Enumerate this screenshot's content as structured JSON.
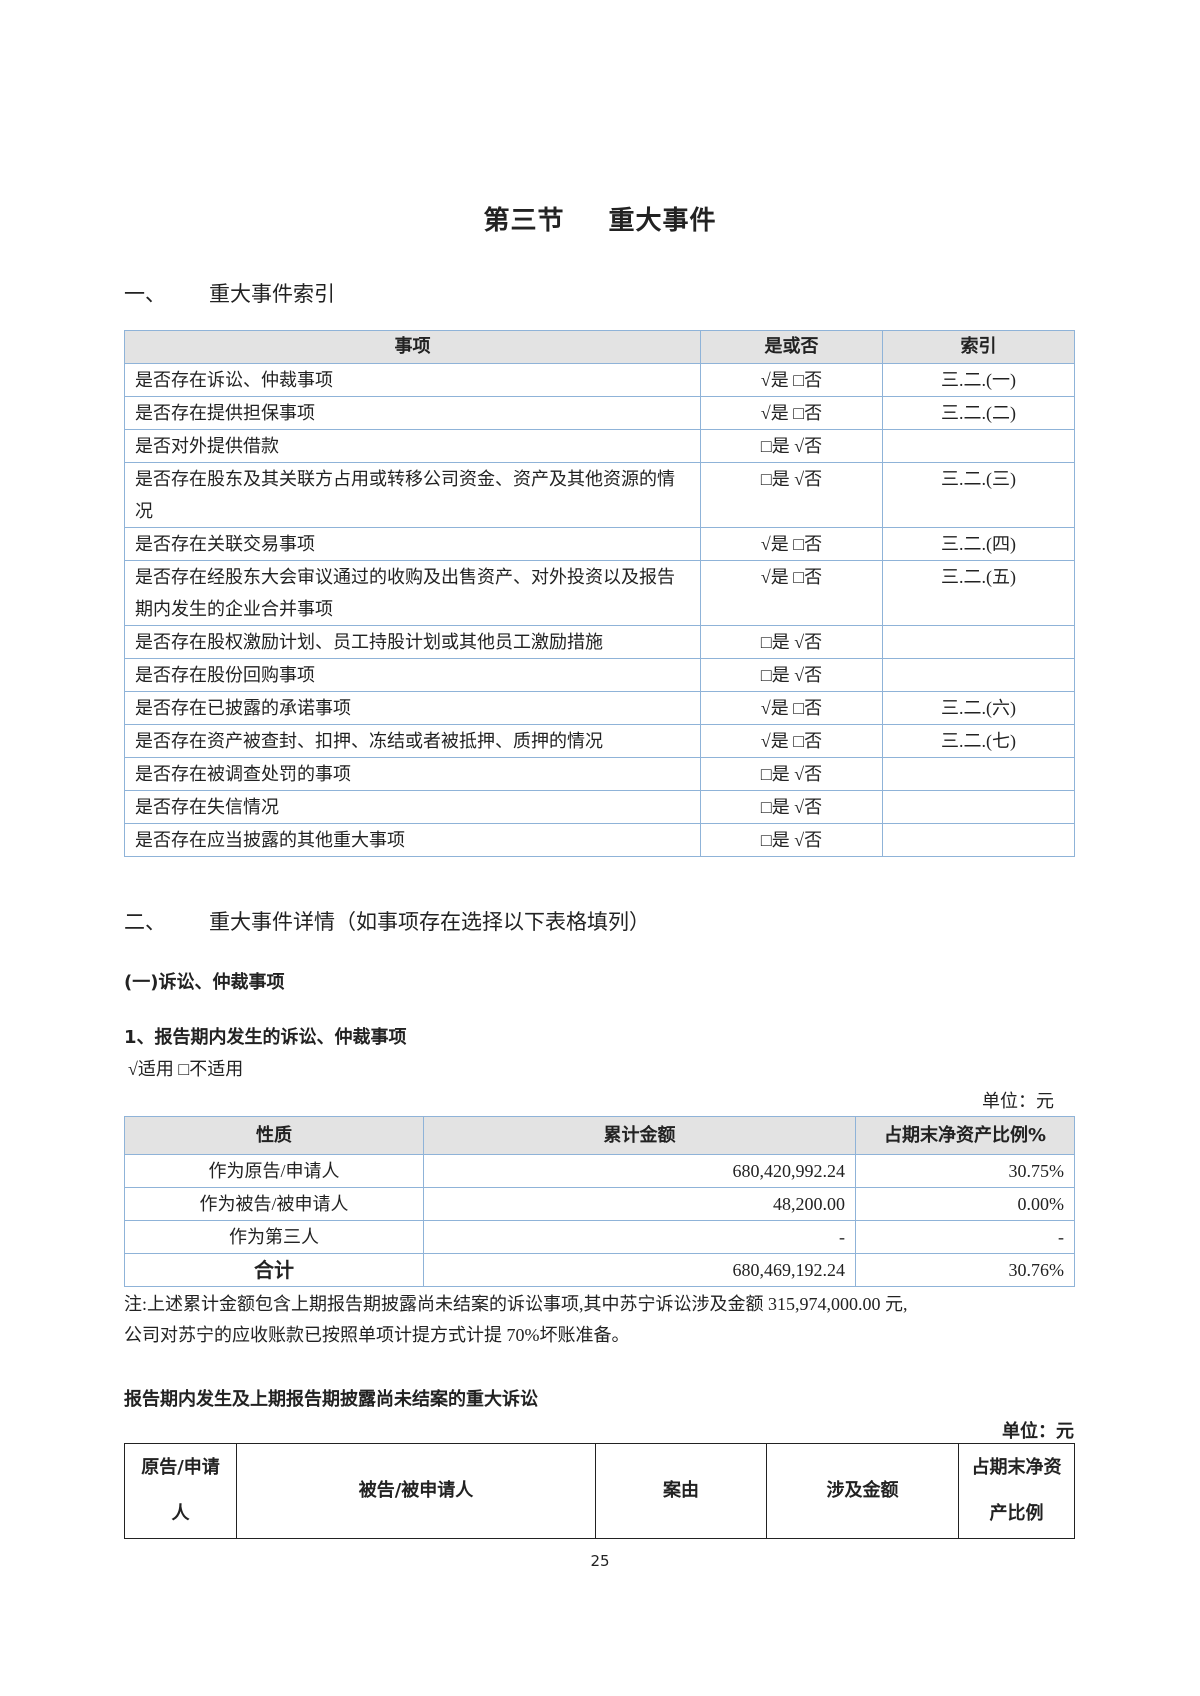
{
  "section_title": {
    "part1": "第三节",
    "part2": "重大事件"
  },
  "heading1": {
    "num": "一、",
    "text": "重大事件索引"
  },
  "index_table": {
    "headers": [
      "事项",
      "是或否",
      "索引"
    ],
    "rows": [
      {
        "item": "是否存在诉讼、仲裁事项",
        "yesno": "√是 □否",
        "index": "三.二.(一)"
      },
      {
        "item": "是否存在提供担保事项",
        "yesno": "√是 □否",
        "index": "三.二.(二)"
      },
      {
        "item": "是否对外提供借款",
        "yesno": "□是 √否",
        "index": ""
      },
      {
        "item": "是否存在股东及其关联方占用或转移公司资金、资产及其他资源的情况",
        "yesno": "□是 √否",
        "index": "三.二.(三)"
      },
      {
        "item": "是否存在关联交易事项",
        "yesno": "√是 □否",
        "index": "三.二.(四)"
      },
      {
        "item": "是否存在经股东大会审议通过的收购及出售资产、对外投资以及报告期内发生的企业合并事项",
        "yesno": "√是 □否",
        "index": "三.二.(五)"
      },
      {
        "item": "是否存在股权激励计划、员工持股计划或其他员工激励措施",
        "yesno": "□是 √否",
        "index": ""
      },
      {
        "item": "是否存在股份回购事项",
        "yesno": "□是 √否",
        "index": ""
      },
      {
        "item": "是否存在已披露的承诺事项",
        "yesno": "√是 □否",
        "index": "三.二.(六)"
      },
      {
        "item": "是否存在资产被查封、扣押、冻结或者被抵押、质押的情况",
        "yesno": "√是 □否",
        "index": "三.二.(七)"
      },
      {
        "item": "是否存在被调查处罚的事项",
        "yesno": "□是 √否",
        "index": ""
      },
      {
        "item": "是否存在失信情况",
        "yesno": "□是 √否",
        "index": ""
      },
      {
        "item": "是否存在应当披露的其他重大事项",
        "yesno": "□是 √否",
        "index": ""
      }
    ]
  },
  "heading2": {
    "num": "二、",
    "text": "重大事件详情（如事项存在选择以下表格填列）"
  },
  "sub1": "(一)诉讼、仲裁事项",
  "sub1_1": "1、报告期内发生的诉讼、仲裁事项",
  "applicable": "√适用 □不适用",
  "unit1": "单位：元",
  "litigation_table": {
    "headers": [
      "性质",
      "累计金额",
      "占期末净资产比例%"
    ],
    "rows": [
      {
        "nature": "作为原告/申请人",
        "amount": "680,420,992.24",
        "ratio": "30.75%"
      },
      {
        "nature": "作为被告/被申请人",
        "amount": "48,200.00",
        "ratio": "0.00%"
      },
      {
        "nature": "作为第三人",
        "amount": "-",
        "ratio": "-"
      },
      {
        "nature": "合计",
        "amount": "680,469,192.24",
        "ratio": "30.76%"
      }
    ]
  },
  "note_line1": "注:上述累计金额包含上期报告期披露尚未结案的诉讼事项,其中苏宁诉讼涉及金额 315,974,000.00 元,",
  "note_line2": "公司对苏宁的应收账款已按照单项计提方式计提 70%坏账准备。",
  "major_heading": "报告期内发生及上期报告期披露尚未结案的重大诉讼",
  "unit2": "单位：元",
  "major_table": {
    "headers": [
      "原告/申请人",
      "被告/被申请人",
      "案由",
      "涉及金额",
      "占期末净资产比例"
    ]
  },
  "page_number": "25"
}
